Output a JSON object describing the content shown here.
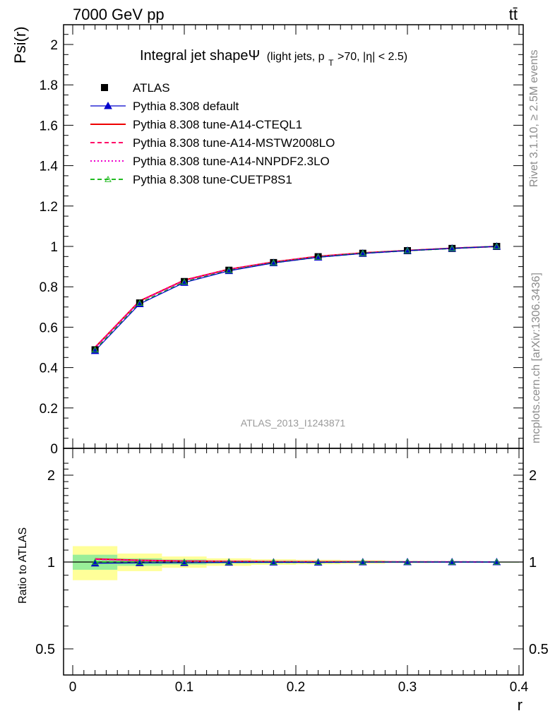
{
  "header": {
    "process": "7000 GeV pp",
    "final_state": "tt̄"
  },
  "side_labels": {
    "rivet": "Rivet 3.1.10, ≥ 2.5M events",
    "source": "mcplots.cern.ch [arXiv:1306.3436]"
  },
  "watermark": "ATLAS_2013_I1243871",
  "chart_data": [
    {
      "type": "line",
      "panel": "main",
      "title": "Integral jet shapeΨ",
      "title_detail": "(light jets, p",
      "title_detail_sub": "T",
      "title_detail_tail": ">70, |η| < 2.5)",
      "xlabel": "r",
      "ylabel": "Psi(r)",
      "xlim": [
        0,
        0.4
      ],
      "ylim": [
        0,
        2.1
      ],
      "x_ticks": [
        "0",
        "0.1",
        "0.2",
        "0.3",
        "0.4"
      ],
      "y_ticks": [
        "0",
        "0.2",
        "0.4",
        "0.6",
        "0.8",
        "1",
        "1.2",
        "1.4",
        "1.6",
        "1.8",
        "2"
      ],
      "x": [
        0.02,
        0.06,
        0.1,
        0.14,
        0.18,
        0.22,
        0.26,
        0.3,
        0.34,
        0.38
      ],
      "data": {
        "name": "ATLAS",
        "values": [
          0.488,
          0.72,
          0.826,
          0.882,
          0.92,
          0.949,
          0.966,
          0.979,
          0.99,
          1.0
        ],
        "color": "#000000"
      },
      "series": [
        {
          "name": "Pythia 8.308 default",
          "values": [
            0.483,
            0.715,
            0.821,
            0.879,
            0.918,
            0.946,
            0.965,
            0.979,
            0.99,
            1.0
          ],
          "color": "#0000cc",
          "style": "solid",
          "marker": "triangle"
        },
        {
          "name": "Pythia 8.308 tune-A14-CTEQL1",
          "values": [
            0.5,
            0.73,
            0.833,
            0.887,
            0.923,
            0.951,
            0.968,
            0.98,
            0.991,
            1.0
          ],
          "color": "#ee0000",
          "style": "solid",
          "marker": "none"
        },
        {
          "name": "Pythia 8.308 tune-A14-MSTW2008LO",
          "values": [
            0.499,
            0.729,
            0.832,
            0.886,
            0.922,
            0.95,
            0.967,
            0.98,
            0.991,
            1.0
          ],
          "color": "#ff0066",
          "style": "dashed",
          "marker": "none"
        },
        {
          "name": "Pythia 8.308 tune-A14-NNPDF2.3LO",
          "values": [
            0.498,
            0.728,
            0.831,
            0.886,
            0.922,
            0.95,
            0.967,
            0.98,
            0.991,
            1.0
          ],
          "color": "#ee00cc",
          "style": "dotted",
          "marker": "none"
        },
        {
          "name": "Pythia 8.308 tune-CUETP8S1",
          "values": [
            0.488,
            0.719,
            0.824,
            0.881,
            0.919,
            0.947,
            0.966,
            0.979,
            0.99,
            1.0
          ],
          "color": "#22bb22",
          "style": "dashed",
          "marker": "open-triangle"
        }
      ],
      "legend": "top-left"
    },
    {
      "type": "line",
      "panel": "ratio",
      "xlabel": "r",
      "ylabel": "Ratio to ATLAS",
      "xlim": [
        0,
        0.4
      ],
      "ylim": [
        0.4,
        2.3
      ],
      "log_y": true,
      "x_ticks": [
        "0",
        "0.1",
        "0.2",
        "0.3",
        "0.4"
      ],
      "y_ticks": [
        "0.5",
        "1",
        "2"
      ],
      "bands": {
        "bin_edges": [
          0.0,
          0.04,
          0.08,
          0.12,
          0.16,
          0.2,
          0.24,
          0.28,
          0.32,
          0.36,
          0.4
        ],
        "stat_halfwidth": [
          0.06,
          0.03,
          0.02,
          0.012,
          0.01,
          0.008,
          0.006,
          0.004,
          0.003,
          0.001
        ],
        "total_halfwidth": [
          0.135,
          0.07,
          0.045,
          0.03,
          0.022,
          0.018,
          0.014,
          0.008,
          0.004,
          0.002
        ],
        "stat_color": "#99ee99",
        "total_color": "#ffff99"
      },
      "series_ratio": [
        {
          "name": "Pythia 8.308 default",
          "values": [
            0.99,
            0.993,
            0.994,
            0.997,
            0.998,
            0.997,
            0.999,
            1.0,
            1.0,
            1.0
          ]
        },
        {
          "name": "Pythia 8.308 tune-A14-CTEQL1",
          "values": [
            1.025,
            1.014,
            1.008,
            1.006,
            1.003,
            1.002,
            1.002,
            1.001,
            1.001,
            1.0
          ]
        },
        {
          "name": "Pythia 8.308 tune-A14-MSTW2008LO",
          "values": [
            1.023,
            1.013,
            1.007,
            1.005,
            1.002,
            1.001,
            1.001,
            1.001,
            1.001,
            1.0
          ]
        },
        {
          "name": "Pythia 8.308 tune-A14-NNPDF2.3LO",
          "values": [
            1.021,
            1.011,
            1.006,
            1.005,
            1.002,
            1.001,
            1.001,
            1.001,
            1.001,
            1.0
          ]
        },
        {
          "name": "Pythia 8.308 tune-CUETP8S1",
          "values": [
            1.0,
            0.999,
            0.998,
            0.999,
            0.999,
            0.998,
            1.0,
            1.0,
            1.0,
            1.0
          ]
        }
      ]
    }
  ]
}
